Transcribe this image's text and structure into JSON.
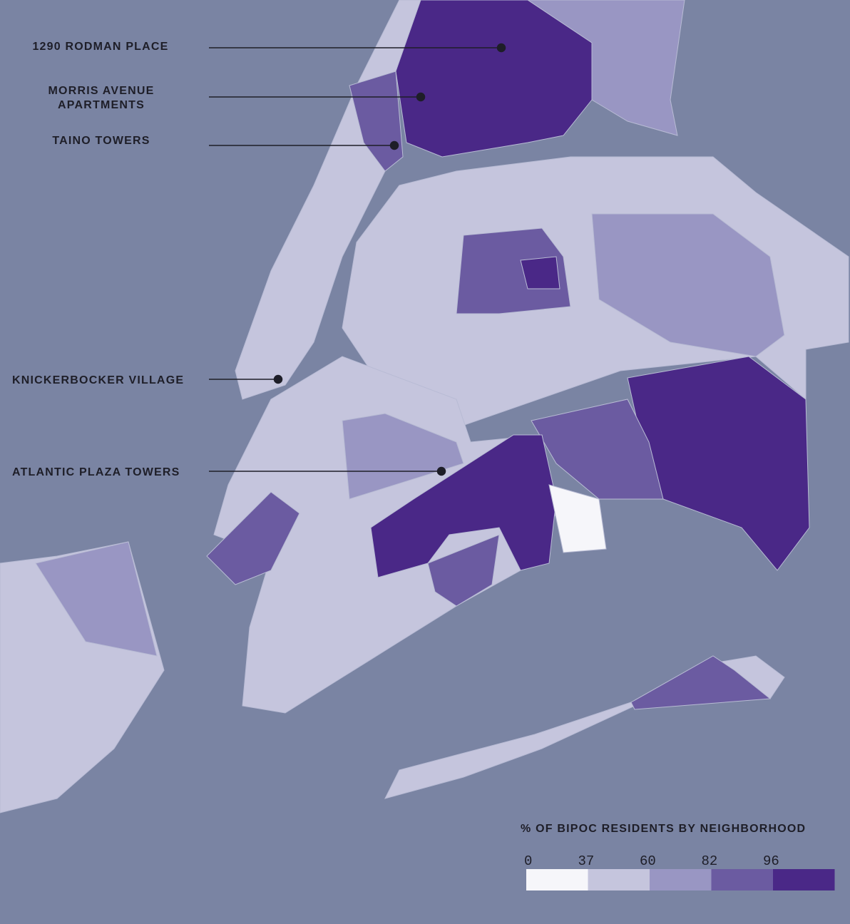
{
  "labels": [
    {
      "lines": [
        "1290 RODMAN PLACE"
      ]
    },
    {
      "lines": [
        "MORRIS AVENUE",
        "APARTMENTS"
      ]
    },
    {
      "lines": [
        "TAINO TOWERS"
      ]
    },
    {
      "lines": [
        "KNICKERBOCKER VILLAGE"
      ]
    },
    {
      "lines": [
        "ATLANTIC PLAZA TOWERS"
      ]
    }
  ],
  "legend": {
    "title": "% OF BIPOC RESIDENTS BY NEIGHBORHOOD",
    "ticks": [
      0,
      37,
      60,
      82,
      96
    ],
    "colors": [
      "#f6f6fa",
      "#c5c5dd",
      "#9996c3",
      "#6b5ba1",
      "#4a2887"
    ]
  }
}
